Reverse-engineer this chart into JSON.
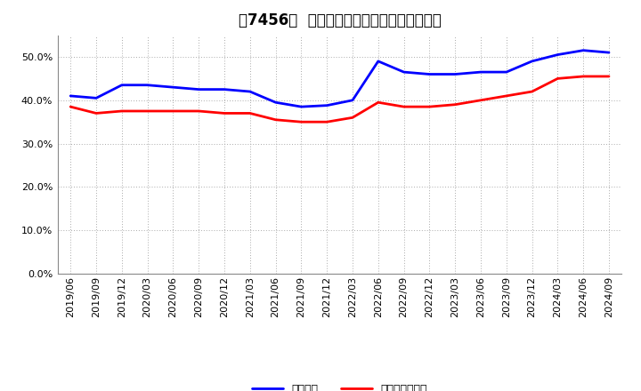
{
  "title": "［7456］  固定比率、固定長期適合率の推移",
  "x_labels": [
    "2019/06",
    "2019/09",
    "2019/12",
    "2020/03",
    "2020/06",
    "2020/09",
    "2020/12",
    "2021/03",
    "2021/06",
    "2021/09",
    "2021/12",
    "2022/03",
    "2022/06",
    "2022/09",
    "2022/12",
    "2023/03",
    "2023/06",
    "2023/09",
    "2023/12",
    "2024/03",
    "2024/06",
    "2024/09"
  ],
  "fixed_ratio": [
    41.0,
    40.5,
    43.5,
    43.5,
    43.0,
    42.5,
    42.5,
    42.0,
    39.5,
    38.5,
    38.8,
    40.0,
    49.0,
    46.5,
    46.0,
    46.0,
    46.5,
    46.5,
    49.0,
    50.5,
    51.5,
    51.0
  ],
  "fixed_longterm_ratio": [
    38.5,
    37.0,
    37.5,
    37.5,
    37.5,
    37.5,
    37.0,
    37.0,
    35.5,
    35.0,
    35.0,
    36.0,
    39.5,
    38.5,
    38.5,
    39.0,
    40.0,
    41.0,
    42.0,
    45.0,
    45.5,
    45.5
  ],
  "ylim": [
    0,
    55
  ],
  "yticks": [
    0.0,
    10.0,
    20.0,
    30.0,
    40.0,
    50.0
  ],
  "line_color_blue": "#0000FF",
  "line_color_red": "#FF0000",
  "background_color": "#FFFFFF",
  "plot_bg_color": "#FFFFFF",
  "grid_color": "#AAAAAA",
  "legend_label_blue": "固定比率",
  "legend_label_red": "固定長期適合率",
  "title_fontsize": 12,
  "tick_fontsize": 8,
  "legend_fontsize": 9
}
